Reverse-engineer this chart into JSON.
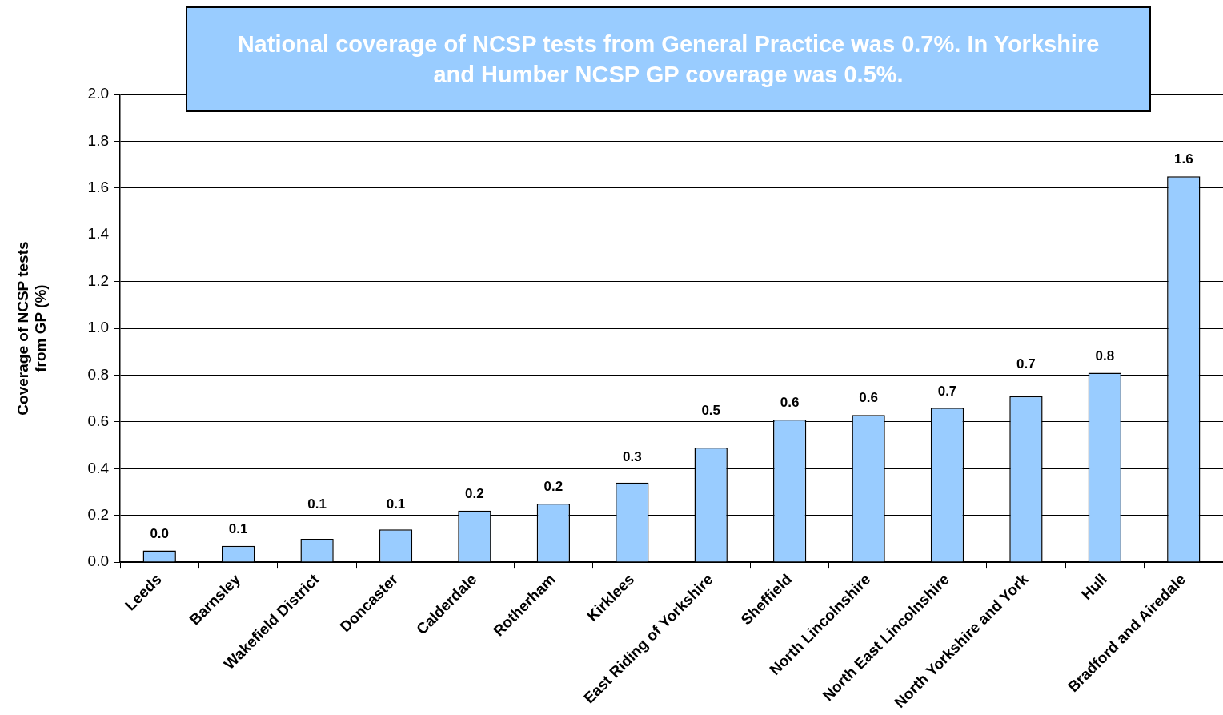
{
  "chart_data": {
    "type": "bar",
    "title": "National coverage of NCSP tests from General Practice was 0.7%. In Yorkshire and Humber NCSP GP coverage was 0.5%.",
    "ylabel": "Coverage of NCSP tests from GP (%)",
    "categories": [
      "Leeds",
      "Barnsley",
      "Wakefield District",
      "Doncaster",
      "Calderdale",
      "Rotherham",
      "Kirklees",
      "East Riding of Yorkshire",
      "Sheffield",
      "North Lincolnshire",
      "North East Lincolnshire",
      "North Yorkshire and York",
      "Hull",
      "Bradford and Airedale"
    ],
    "values": [
      0.05,
      0.07,
      0.1,
      0.14,
      0.22,
      0.25,
      0.34,
      0.49,
      0.61,
      0.63,
      0.66,
      0.71,
      0.81,
      1.65
    ],
    "value_labels": [
      "0.0",
      "0.1",
      "0.1",
      "0.1",
      "0.2",
      "0.2",
      "0.3",
      "0.5",
      "0.6",
      "0.6",
      "0.7",
      "0.7",
      "0.8",
      "1.6"
    ],
    "color": "#99ccff",
    "ylim": [
      0,
      2
    ],
    "yticks": [
      {
        "value": 0,
        "label": "0.0"
      },
      {
        "value": 0.2,
        "label": "0.2"
      },
      {
        "value": 0.4,
        "label": "0.4"
      },
      {
        "value": 0.6,
        "label": "0.6"
      },
      {
        "value": 0.8,
        "label": "0.8"
      },
      {
        "value": 1,
        "label": "1.0"
      },
      {
        "value": 1.2,
        "label": "1.2"
      },
      {
        "value": 1.4,
        "label": "1.4"
      },
      {
        "value": 1.6,
        "label": "1.6"
      },
      {
        "value": 1.8,
        "label": "1.8"
      },
      {
        "value": 2,
        "label": "2.0"
      }
    ],
    "grid": "y",
    "legend": false
  }
}
